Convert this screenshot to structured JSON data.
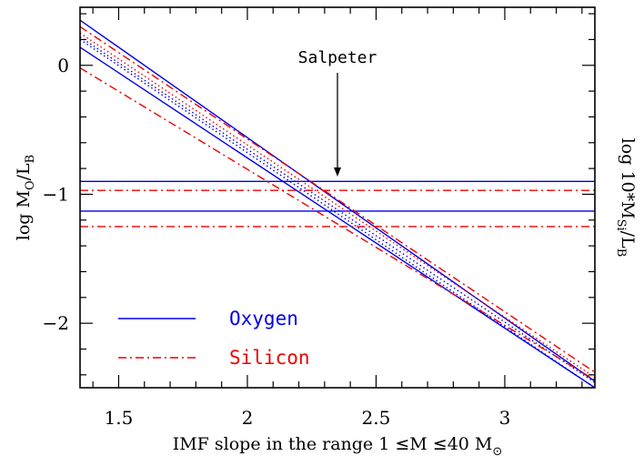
{
  "chart_data": {
    "type": "line",
    "xlabel_parts": [
      "IMF slope in the range 1 ",
      "≤",
      "M ",
      "≤",
      "40 M",
      "⊙"
    ],
    "ylabel_left_parts": [
      "log M",
      "O",
      "/L",
      "B"
    ],
    "ylabel_right_parts": [
      "log 10*M",
      "Si",
      "/L",
      "B"
    ],
    "annotation": "Salpeter",
    "annotation_x": 2.35,
    "xlim": [
      1.35,
      3.35
    ],
    "ylim": [
      -2.5,
      0.45
    ],
    "x_ticks": [
      1.5,
      2,
      2.5,
      3
    ],
    "x_tick_labels": [
      "1.5",
      "2",
      "2.5",
      "3"
    ],
    "y_ticks": [
      0,
      -1,
      -2
    ],
    "y_tick_labels": [
      "0",
      "−1",
      "−2"
    ],
    "grid": false,
    "legend_placement": "bottom-left",
    "colors": {
      "oxygen": "#0000ee",
      "silicon": "#ee0000"
    },
    "series": [
      {
        "name": "Oxygen",
        "style": "solid",
        "color": "#0000ee",
        "x": [
          1.35,
          3.35
        ],
        "y": [
          0.35,
          -2.45
        ]
      },
      {
        "name": "Oxygen",
        "style": "solid",
        "color": "#0000ee",
        "x": [
          1.35,
          3.35
        ],
        "y": [
          0.14,
          -2.5
        ]
      },
      {
        "name": "Oxygen",
        "style": "dotted",
        "color": "#0000ee",
        "x": [
          1.35,
          3.35
        ],
        "y": [
          0.22,
          -2.46
        ]
      },
      {
        "name": "Oxygen",
        "style": "dotted",
        "color": "#0000ee",
        "x": [
          1.35,
          3.35
        ],
        "y": [
          0.2,
          -2.5
        ]
      },
      {
        "name": "Oxygen",
        "style": "solid",
        "color": "#0000ee",
        "x": [
          1.35,
          3.35
        ],
        "y": [
          -0.9,
          -0.9
        ]
      },
      {
        "name": "Oxygen",
        "style": "solid",
        "color": "#0000ee",
        "x": [
          1.35,
          3.35
        ],
        "y": [
          -1.13,
          -1.13
        ]
      },
      {
        "name": "Silicon",
        "style": "dashdot",
        "color": "#ee0000",
        "x": [
          1.35,
          3.35
        ],
        "y": [
          0.3,
          -2.38
        ]
      },
      {
        "name": "Silicon",
        "style": "dashdot",
        "color": "#ee0000",
        "x": [
          1.35,
          3.35
        ],
        "y": [
          -0.02,
          -2.44
        ]
      },
      {
        "name": "Silicon",
        "style": "dotted",
        "color": "#ee0000",
        "x": [
          1.35,
          3.35
        ],
        "y": [
          0.25,
          -2.42
        ]
      },
      {
        "name": "Silicon",
        "style": "dashdot",
        "color": "#ee0000",
        "x": [
          1.35,
          3.35
        ],
        "y": [
          -0.97,
          -0.97
        ]
      },
      {
        "name": "Silicon",
        "style": "dashdot",
        "color": "#ee0000",
        "x": [
          1.35,
          3.35
        ],
        "y": [
          -1.25,
          -1.25
        ]
      }
    ],
    "legend": [
      {
        "label": "Oxygen",
        "style": "solid",
        "color": "#0000ee"
      },
      {
        "label": "Silicon",
        "style": "dashdot",
        "color": "#ee0000"
      }
    ]
  }
}
